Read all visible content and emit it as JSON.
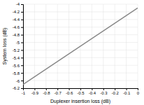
{
  "chart_data": {
    "type": "line",
    "x": [
      -1.0,
      0.0
    ],
    "values": [
      -6.1,
      -4.1
    ],
    "color": "#888888",
    "xlabel": "Duplexer insertion loss (dB)",
    "ylabel": "System loss (dB)",
    "xlim": [
      -1.0,
      0.0
    ],
    "ylim": [
      -6.2,
      -4.0
    ],
    "xticks": [
      -1.0,
      -0.9,
      -0.8,
      -0.7,
      -0.6,
      -0.5,
      -0.4,
      -0.3,
      -0.2,
      -0.1,
      0.0
    ],
    "yticks": [
      -6.2,
      -6.0,
      -5.8,
      -5.6,
      -5.4,
      -5.2,
      -5.0,
      -4.8,
      -4.6,
      -4.4,
      -4.2,
      -4.0
    ],
    "grid": true
  }
}
